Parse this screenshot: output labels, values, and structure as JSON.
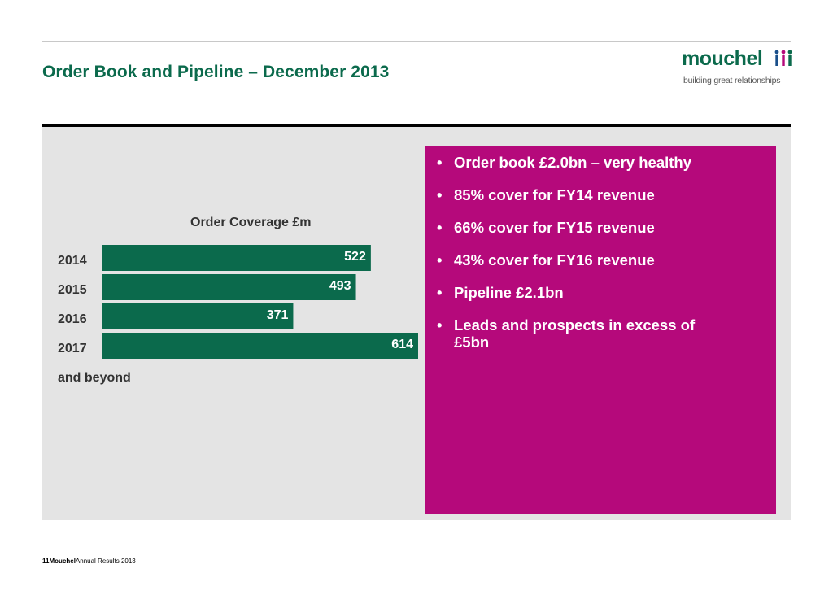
{
  "header": {
    "title": "Order Book and Pipeline – December 2013",
    "logo_word": "mouchel",
    "logo_tagline": "building great relationships"
  },
  "colors": {
    "brand_green": "#0b6a4c",
    "accent_magenta": "#b5097b",
    "panel_gray": "#e4e4e4"
  },
  "chart_data": {
    "type": "bar",
    "orientation": "horizontal",
    "title": "Order Coverage £m",
    "categories": [
      "2014",
      "2015",
      "2016",
      "2017"
    ],
    "category_suffix_last": "and beyond",
    "values": [
      522,
      493,
      371,
      614
    ],
    "value_labels": [
      "522",
      "493",
      "371",
      "614"
    ],
    "xlim": [
      0,
      614
    ],
    "grid": false,
    "legend": "none"
  },
  "bullets": [
    "Order book £2.0bn – very healthy",
    "85% cover for FY14 revenue",
    "66% cover for FY15 revenue",
    "43% cover for FY16 revenue",
    "Pipeline £2.1bn",
    "Leads and prospects in excess of £5bn"
  ],
  "footer": {
    "page_number": "11",
    "company": "Mouchel",
    "report": "Annual Results 2013"
  }
}
